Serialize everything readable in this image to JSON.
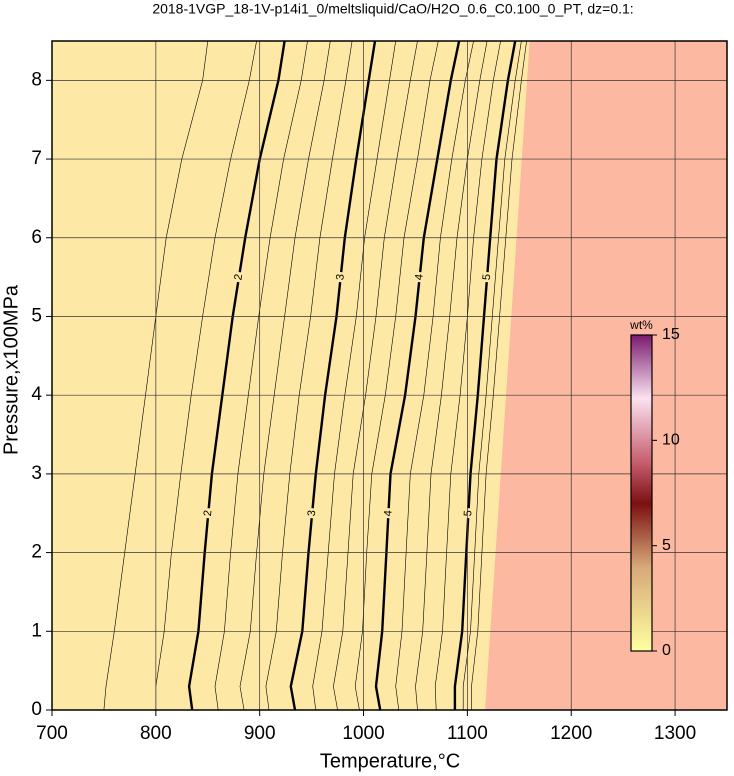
{
  "chart_data": {
    "type": "contour",
    "title": "2018-1VGP_18-1V-p14i1_0/meltsliquid/CaO/H2O_0.6_C0.100_0_PT, dz=0.1:",
    "xlabel": "Temperature,°C",
    "ylabel": "Pressure,x100MPa",
    "xlim": [
      700,
      1350
    ],
    "ylim": [
      0,
      8.5
    ],
    "xticks": [
      700,
      800,
      900,
      1000,
      1100,
      1200,
      1300
    ],
    "yticks": [
      0,
      1,
      2,
      3,
      4,
      5,
      6,
      7,
      8
    ],
    "grid": true,
    "y": [
      0,
      0.3,
      1,
      2,
      3,
      4,
      5,
      6,
      7,
      8,
      8.5
    ],
    "contours": [
      {
        "level": 1.5,
        "major": false,
        "x": [
          750,
          752,
          760,
          770,
          780,
          790,
          800,
          810,
          825,
          845,
          850
        ]
      },
      {
        "level": 1.75,
        "major": false,
        "x": [
          800,
          800,
          808,
          815,
          824,
          834,
          845,
          857,
          872,
          890,
          897
        ]
      },
      {
        "level": 2,
        "major": true,
        "x": [
          835,
          832,
          841,
          847,
          854,
          864,
          874,
          886,
          900,
          918,
          924
        ]
      },
      {
        "level": 2.25,
        "major": false,
        "x": [
          860,
          857,
          866,
          872,
          879,
          889,
          899,
          910,
          923,
          940,
          946
        ]
      },
      {
        "level": 2.5,
        "major": false,
        "x": [
          885,
          881,
          891,
          897,
          904,
          914,
          924,
          934,
          947,
          962,
          968
        ]
      },
      {
        "level": 2.75,
        "major": false,
        "x": [
          909,
          906,
          916,
          922,
          929,
          938,
          949,
          958,
          970,
          983,
          989
        ]
      },
      {
        "level": 3,
        "major": true,
        "x": [
          934,
          930,
          941,
          947,
          954,
          963,
          974,
          982,
          993,
          1005,
          1011
        ]
      },
      {
        "level": 3.25,
        "major": false,
        "x": [
          954,
          951,
          960,
          966,
          972,
          982,
          993,
          1001,
          1013,
          1025,
          1031
        ]
      },
      {
        "level": 3.5,
        "major": false,
        "x": [
          975,
          971,
          980,
          985,
          990,
          1002,
          1012,
          1020,
          1032,
          1045,
          1052
        ]
      },
      {
        "level": 3.75,
        "major": false,
        "x": [
          996,
          992,
          999,
          1003,
          1008,
          1021,
          1031,
          1039,
          1052,
          1064,
          1072
        ]
      },
      {
        "level": 4,
        "major": true,
        "x": [
          1016,
          1012,
          1018,
          1022,
          1026,
          1040,
          1050,
          1058,
          1071,
          1084,
          1092
        ]
      },
      {
        "level": 4.25,
        "major": false,
        "x": [
          1034,
          1031,
          1037,
          1041,
          1045,
          1058,
          1067,
          1074,
          1085,
          1098,
          1106
        ]
      },
      {
        "level": 4.5,
        "major": false,
        "x": [
          1052,
          1050,
          1057,
          1061,
          1065,
          1075,
          1083,
          1090,
          1100,
          1112,
          1119
        ]
      },
      {
        "level": 4.75,
        "major": false,
        "x": [
          1070,
          1069,
          1076,
          1080,
          1084,
          1093,
          1100,
          1106,
          1114,
          1125,
          1132
        ]
      },
      {
        "level": 5,
        "major": true,
        "x": [
          1088,
          1088,
          1095,
          1099,
          1103,
          1110,
          1116,
          1122,
          1128,
          1139,
          1146
        ]
      },
      {
        "level": 5.25,
        "major": false,
        "x": [
          1096,
          1096,
          1103,
          1107,
          1111,
          1118,
          1124,
          1130,
          1136,
          1146,
          1152
        ]
      },
      {
        "level": 5.5,
        "major": false,
        "x": [
          1104,
          1104,
          1110,
          1114,
          1118,
          1125,
          1131,
          1137,
          1143,
          1152,
          1157
        ]
      }
    ],
    "fill": {
      "low_color": "#fde8a6",
      "high_color": "#fcb8a0",
      "boundary_x": [
        1117,
        1160
      ],
      "boundary_y": [
        0,
        8.5
      ]
    },
    "colorbar": {
      "label": "wt%",
      "lim": [
        0,
        15
      ],
      "ticks": [
        0,
        5,
        10,
        15
      ],
      "stops": [
        {
          "value": 0,
          "color": "#ffffa0"
        },
        {
          "value": 4,
          "color": "#d8a878"
        },
        {
          "value": 7,
          "color": "#7a1010"
        },
        {
          "value": 9,
          "color": "#c86070"
        },
        {
          "value": 12,
          "color": "#fbe2f0"
        },
        {
          "value": 15,
          "color": "#7a1b6e"
        }
      ]
    }
  }
}
